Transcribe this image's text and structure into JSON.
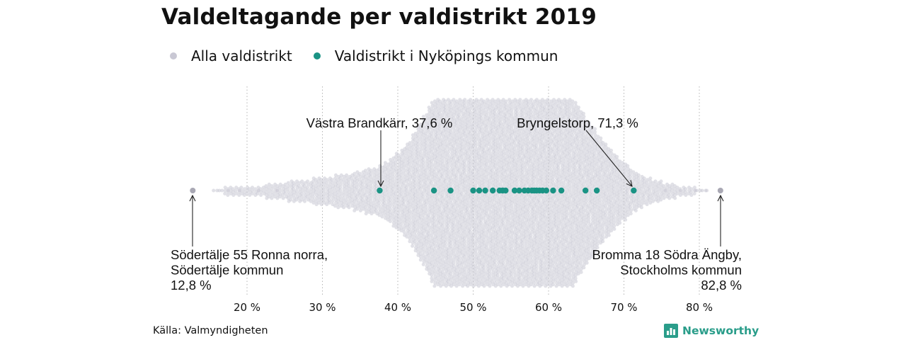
{
  "title": "Valdeltagande per valdistrikt 2019",
  "legend": {
    "all_label": "Alla valdistrikt",
    "local_label": "Valdistrikt i Nyköpings kommun"
  },
  "colors": {
    "all": "#c9c8d4",
    "local": "#1a9384",
    "grid": "#b5b5b5"
  },
  "source": "Källa: Valmyndigheten",
  "brand": {
    "name": "Newsworthy",
    "color": "#2a9d8a",
    "icon": "bar-chart-icon"
  },
  "chart_data": {
    "type": "scatter",
    "subtype": "beeswarm",
    "x_unit": "%",
    "xlim": [
      12.0,
      83.5
    ],
    "x_ticks": [
      20,
      30,
      40,
      50,
      60,
      70,
      80
    ],
    "x_tick_labels": [
      "20 %",
      "30 %",
      "40 %",
      "50 %",
      "60 %",
      "70 %",
      "80 %"
    ],
    "grid": "vertical-dotted",
    "series": [
      {
        "name": "Alla valdistrikt",
        "density_profile": [
          [
            12.8,
            0
          ],
          [
            15,
            0
          ],
          [
            19,
            1
          ],
          [
            21,
            1
          ],
          [
            24,
            2
          ],
          [
            27,
            3
          ],
          [
            30,
            4
          ],
          [
            33,
            5
          ],
          [
            35,
            6
          ],
          [
            38,
            8
          ],
          [
            41,
            14
          ],
          [
            44,
            26
          ],
          [
            47,
            44
          ],
          [
            50,
            58
          ],
          [
            52,
            64
          ],
          [
            54,
            66
          ],
          [
            56,
            62
          ],
          [
            58,
            55
          ],
          [
            60,
            46
          ],
          [
            62,
            37
          ],
          [
            64,
            27
          ],
          [
            66,
            20
          ],
          [
            68,
            14
          ],
          [
            70,
            9
          ],
          [
            72,
            5
          ],
          [
            74,
            3
          ],
          [
            76,
            2
          ],
          [
            78,
            1
          ],
          [
            81,
            0
          ],
          [
            82.8,
            0
          ]
        ]
      },
      {
        "name": "Valdistrikt i Nyköpings kommun",
        "values": [
          37.6,
          44.8,
          47.0,
          50.0,
          50.8,
          51.6,
          52.6,
          53.5,
          53.9,
          54.3,
          55.5,
          56.1,
          56.8,
          57.3,
          57.8,
          58.1,
          58.4,
          58.8,
          59.2,
          59.7,
          60.6,
          61.7,
          64.9,
          66.4,
          71.3
        ]
      }
    ],
    "annotations": [
      {
        "lines": [
          "Västra Brandkärr, 37,6 %"
        ],
        "x": 37.6,
        "series": 1,
        "position": "above"
      },
      {
        "lines": [
          "Bryngelstorp, 71,3 %"
        ],
        "x": 71.3,
        "series": 1,
        "position": "above"
      },
      {
        "lines": [
          "Södertälje 55 Ronna norra,",
          "Södertälje kommun",
          "12,8 %"
        ],
        "x": 12.8,
        "series": 0,
        "position": "below",
        "align": "left"
      },
      {
        "lines": [
          "Bromma 18 Södra Ängby,",
          "Stockholms kommun",
          "82,8 %"
        ],
        "x": 82.8,
        "series": 0,
        "position": "below",
        "align": "right"
      }
    ]
  }
}
